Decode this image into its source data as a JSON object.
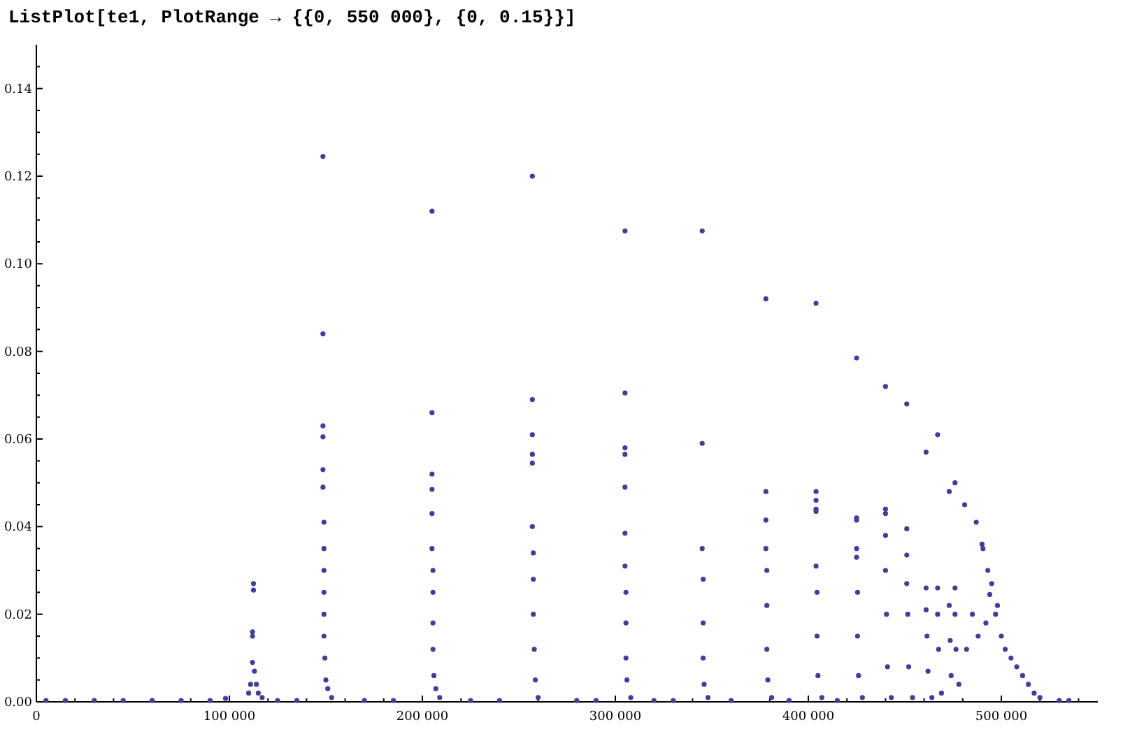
{
  "chart_data": {
    "type": "scatter",
    "title": "ListPlot[te1, PlotRange → {{0, 550 000}, {0, 0.15}}]",
    "marker": "circle",
    "xlim": [
      0,
      550000
    ],
    "ylim": [
      0,
      0.15
    ],
    "xticks": [
      {
        "value": 0,
        "label": "0"
      },
      {
        "value": 20000,
        "label": null
      },
      {
        "value": 40000,
        "label": null
      },
      {
        "value": 60000,
        "label": null
      },
      {
        "value": 80000,
        "label": null
      },
      {
        "value": 100000,
        "label": "100 000"
      },
      {
        "value": 120000,
        "label": null
      },
      {
        "value": 140000,
        "label": null
      },
      {
        "value": 160000,
        "label": null
      },
      {
        "value": 180000,
        "label": null
      },
      {
        "value": 200000,
        "label": "200 000"
      },
      {
        "value": 220000,
        "label": null
      },
      {
        "value": 240000,
        "label": null
      },
      {
        "value": 260000,
        "label": null
      },
      {
        "value": 280000,
        "label": null
      },
      {
        "value": 300000,
        "label": "300 000"
      },
      {
        "value": 320000,
        "label": null
      },
      {
        "value": 340000,
        "label": null
      },
      {
        "value": 360000,
        "label": null
      },
      {
        "value": 380000,
        "label": null
      },
      {
        "value": 400000,
        "label": "400 000"
      },
      {
        "value": 420000,
        "label": null
      },
      {
        "value": 440000,
        "label": null
      },
      {
        "value": 460000,
        "label": null
      },
      {
        "value": 480000,
        "label": null
      },
      {
        "value": 500000,
        "label": "500 000"
      },
      {
        "value": 520000,
        "label": null
      },
      {
        "value": 540000,
        "label": null
      }
    ],
    "yticks": [
      {
        "value": 0,
        "label": "0.00"
      },
      {
        "value": 0.005,
        "label": null
      },
      {
        "value": 0.01,
        "label": null
      },
      {
        "value": 0.015,
        "label": null
      },
      {
        "value": 0.02,
        "label": "0.02"
      },
      {
        "value": 0.025,
        "label": null
      },
      {
        "value": 0.03,
        "label": null
      },
      {
        "value": 0.035,
        "label": null
      },
      {
        "value": 0.04,
        "label": "0.04"
      },
      {
        "value": 0.045,
        "label": null
      },
      {
        "value": 0.05,
        "label": null
      },
      {
        "value": 0.055,
        "label": null
      },
      {
        "value": 0.06,
        "label": "0.06"
      },
      {
        "value": 0.065,
        "label": null
      },
      {
        "value": 0.07,
        "label": null
      },
      {
        "value": 0.075,
        "label": null
      },
      {
        "value": 0.08,
        "label": "0.08"
      },
      {
        "value": 0.085,
        "label": null
      },
      {
        "value": 0.09,
        "label": null
      },
      {
        "value": 0.095,
        "label": null
      },
      {
        "value": 0.1,
        "label": "0.10"
      },
      {
        "value": 0.105,
        "label": null
      },
      {
        "value": 0.11,
        "label": null
      },
      {
        "value": 0.115,
        "label": null
      },
      {
        "value": 0.12,
        "label": "0.12"
      },
      {
        "value": 0.125,
        "label": null
      },
      {
        "value": 0.13,
        "label": null
      },
      {
        "value": 0.135,
        "label": null
      },
      {
        "value": 0.14,
        "label": "0.14"
      },
      {
        "value": 0.145,
        "label": null
      }
    ],
    "series": [
      {
        "color": "#3f3f9a",
        "x": [
          5000,
          15000,
          30000,
          45000,
          60000,
          75000,
          90000,
          98000,
          125000,
          135000,
          170000,
          185000,
          225000,
          240000,
          280000,
          290000,
          320000,
          330000,
          360000,
          390000,
          415000,
          530000,
          535000,
          110000,
          111000,
          112000,
          112000,
          112000,
          112500,
          112500,
          113000,
          114000,
          115000,
          117000,
          148500,
          148500,
          148500,
          148500,
          148500,
          148500,
          149000,
          149000,
          149000,
          149000,
          149000,
          149000,
          149500,
          150000,
          151000,
          153000,
          205000,
          205000,
          205000,
          205000,
          205000,
          205000,
          205500,
          205500,
          205500,
          205500,
          206000,
          207000,
          209000,
          257000,
          257000,
          257000,
          257000,
          257000,
          257000,
          257500,
          257500,
          257500,
          258000,
          258500,
          260000,
          305000,
          305000,
          305000,
          305000,
          305000,
          305000,
          305000,
          305500,
          305500,
          305500,
          306000,
          308000,
          345000,
          345000,
          345000,
          345500,
          345500,
          345500,
          346000,
          348000,
          378000,
          378000,
          378000,
          378000,
          378500,
          378500,
          378500,
          379000,
          381000,
          404000,
          404000,
          404000,
          404000,
          404000,
          404000,
          404500,
          404500,
          405000,
          407000,
          425000,
          425000,
          425000,
          425000,
          425000,
          425500,
          425500,
          426000,
          428000,
          440000,
          440000,
          440000,
          440000,
          440000,
          440500,
          441000,
          443000,
          451000,
          451000,
          451000,
          451000,
          451500,
          452000,
          454000,
          461000,
          461000,
          461000,
          461500,
          462000,
          464000,
          467000,
          467000,
          467000,
          467500,
          469000,
          473000,
          473000,
          473500,
          474000,
          476000,
          476000,
          476000,
          476500,
          478000,
          481000,
          482000,
          485000,
          487000,
          488000,
          490000,
          490500,
          492000,
          493000,
          494000,
          495000,
          497000,
          498000,
          500000,
          502000,
          505000,
          508000,
          511000,
          514000,
          517000,
          520000
        ],
        "values": [
          0.0003,
          0.0003,
          0.0003,
          0.0003,
          0.0003,
          0.0003,
          0.0003,
          0.0008,
          0.0003,
          0.0003,
          0.0003,
          0.0003,
          0.0003,
          0.0003,
          0.0003,
          0.0003,
          0.0003,
          0.0003,
          0.0003,
          0.0003,
          0.0003,
          0.0003,
          0.0003,
          0.002,
          0.004,
          0.009,
          0.015,
          0.016,
          0.0255,
          0.027,
          0.007,
          0.004,
          0.002,
          0.001,
          0.1245,
          0.084,
          0.063,
          0.0605,
          0.053,
          0.049,
          0.041,
          0.035,
          0.03,
          0.025,
          0.02,
          0.015,
          0.01,
          0.005,
          0.003,
          0.001,
          0.112,
          0.066,
          0.052,
          0.0485,
          0.043,
          0.035,
          0.03,
          0.025,
          0.018,
          0.012,
          0.006,
          0.003,
          0.001,
          0.12,
          0.069,
          0.061,
          0.0565,
          0.0545,
          0.04,
          0.034,
          0.028,
          0.02,
          0.012,
          0.005,
          0.001,
          0.1075,
          0.0705,
          0.058,
          0.0565,
          0.049,
          0.0385,
          0.031,
          0.025,
          0.018,
          0.01,
          0.005,
          0.001,
          0.1075,
          0.059,
          0.035,
          0.028,
          0.018,
          0.01,
          0.004,
          0.001,
          0.092,
          0.048,
          0.0415,
          0.035,
          0.03,
          0.022,
          0.012,
          0.005,
          0.001,
          0.091,
          0.048,
          0.046,
          0.044,
          0.0435,
          0.031,
          0.025,
          0.015,
          0.006,
          0.001,
          0.0785,
          0.042,
          0.0415,
          0.035,
          0.033,
          0.025,
          0.015,
          0.006,
          0.001,
          0.072,
          0.044,
          0.043,
          0.038,
          0.03,
          0.02,
          0.008,
          0.001,
          0.068,
          0.0395,
          0.0335,
          0.027,
          0.02,
          0.008,
          0.001,
          0.057,
          0.026,
          0.021,
          0.015,
          0.007,
          0.001,
          0.061,
          0.026,
          0.02,
          0.012,
          0.002,
          0.048,
          0.022,
          0.014,
          0.006,
          0.05,
          0.026,
          0.02,
          0.012,
          0.004,
          0.045,
          0.012,
          0.02,
          0.041,
          0.015,
          0.036,
          0.035,
          0.018,
          0.03,
          0.0245,
          0.027,
          0.02,
          0.022,
          0.015,
          0.012,
          0.01,
          0.008,
          0.006,
          0.004,
          0.002,
          0.001
        ]
      }
    ]
  }
}
